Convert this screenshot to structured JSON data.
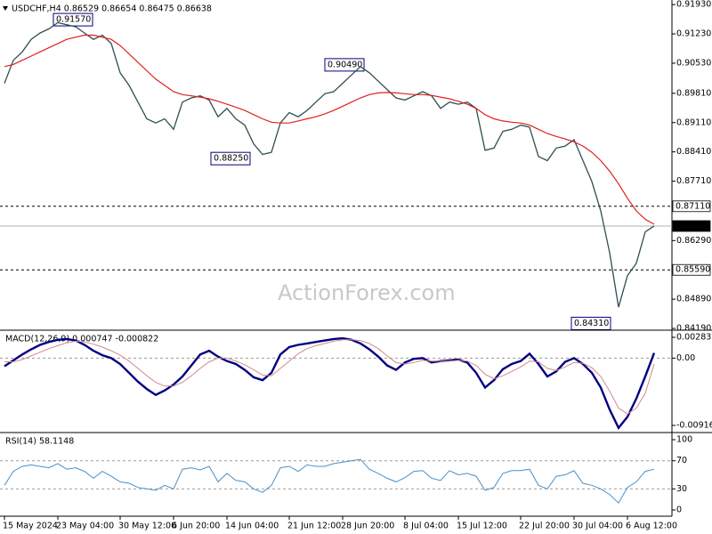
{
  "chart_data": [
    {
      "type": "line",
      "title": "USDCHF,H4 0.86529 0.86654 0.86475 0.86638",
      "watermark": "ActionForex.com",
      "categories": [
        "15 May 2024",
        null,
        null,
        null,
        null,
        null,
        "23 May 04:00",
        null,
        null,
        null,
        null,
        null,
        null,
        "30 May 12:00",
        null,
        null,
        null,
        null,
        null,
        "6 Jun 20:00",
        null,
        null,
        null,
        null,
        null,
        "14 Jun 04:00",
        null,
        null,
        null,
        null,
        null,
        null,
        "21 Jun 12:00",
        null,
        null,
        null,
        null,
        null,
        "28 Jun 20:00",
        null,
        null,
        null,
        null,
        null,
        null,
        "8 Jul 04:00",
        null,
        null,
        null,
        null,
        null,
        "15 Jul 12:00",
        null,
        null,
        null,
        null,
        null,
        null,
        "22 Jul 20:00",
        null,
        null,
        null,
        null,
        null,
        "30 Jul 04:00",
        null,
        null,
        null,
        null,
        null,
        "6 Aug 12:00",
        null,
        null,
        null
      ],
      "ylim": [
        0.8417,
        0.9204
      ],
      "yticks": [
        {
          "value": 0.9193,
          "label": "0.91930"
        },
        {
          "value": 0.9123,
          "label": "0.91230"
        },
        {
          "value": 0.9053,
          "label": "0.90530"
        },
        {
          "value": 0.8981,
          "label": "0.89810"
        },
        {
          "value": 0.8911,
          "label": "0.89110"
        },
        {
          "value": 0.8841,
          "label": "0.88410"
        },
        {
          "value": 0.8771,
          "label": "0.87710"
        },
        {
          "value": 0.8629,
          "label": "0.86290"
        },
        {
          "value": 0.8489,
          "label": "0.84890"
        },
        {
          "value": 0.8419,
          "label": "0.84190"
        }
      ],
      "series": [
        {
          "color": "#2f4f4f",
          "width": 1.3,
          "values": [
            0.9005,
            0.906,
            0.908,
            0.911,
            0.9125,
            0.9135,
            0.915,
            0.9145,
            0.914,
            0.9125,
            0.911,
            0.912,
            0.91,
            0.903,
            0.9,
            0.896,
            0.892,
            0.891,
            0.892,
            0.8895,
            0.896,
            0.897,
            0.8975,
            0.8965,
            0.8925,
            0.8945,
            0.892,
            0.8905,
            0.886,
            0.8835,
            0.884,
            0.891,
            0.8935,
            0.8925,
            0.894,
            0.896,
            0.898,
            0.8985,
            0.9005,
            0.9025,
            0.9045,
            0.903,
            0.901,
            0.899,
            0.897,
            0.8965,
            0.8975,
            0.8985,
            0.8975,
            0.8945,
            0.896,
            0.8955,
            0.896,
            0.8945,
            0.8845,
            0.885,
            0.889,
            0.8895,
            0.8905,
            0.89,
            0.883,
            0.882,
            0.885,
            0.8855,
            0.887,
            0.882,
            0.877,
            0.87,
            0.86,
            0.847,
            0.8545,
            0.8575,
            0.865,
            0.8664
          ]
        },
        {
          "color": "#e02020",
          "width": 1.2,
          "values": [
            0.9045,
            0.905,
            0.906,
            0.907,
            0.908,
            0.909,
            0.91,
            0.911,
            0.9115,
            0.912,
            0.912,
            0.9115,
            0.911,
            0.9095,
            0.9075,
            0.9055,
            0.9035,
            0.9015,
            0.9,
            0.8985,
            0.8978,
            0.8975,
            0.8972,
            0.8968,
            0.8962,
            0.8955,
            0.8948,
            0.894,
            0.893,
            0.892,
            0.8912,
            0.891,
            0.891,
            0.8915,
            0.892,
            0.8925,
            0.8932,
            0.894,
            0.895,
            0.896,
            0.897,
            0.8978,
            0.8982,
            0.8983,
            0.8982,
            0.898,
            0.8978,
            0.8978,
            0.8976,
            0.8972,
            0.8968,
            0.8962,
            0.8955,
            0.8945,
            0.893,
            0.892,
            0.8915,
            0.8912,
            0.891,
            0.8905,
            0.8895,
            0.8885,
            0.8878,
            0.8872,
            0.8865,
            0.8855,
            0.884,
            0.882,
            0.8795,
            0.8765,
            0.873,
            0.87,
            0.868,
            0.8668
          ]
        }
      ],
      "levels": [
        {
          "value": 0.8711,
          "label": "0.87110",
          "style": "dashed"
        },
        {
          "value": 0.86638,
          "label": "0.86638",
          "style": "current"
        },
        {
          "value": 0.8559,
          "label": "0.85590",
          "style": "dashed"
        }
      ],
      "annotations": [
        {
          "value": 0.9157,
          "label": "0.91570"
        },
        {
          "value": 0.9049,
          "label": "0.90490"
        },
        {
          "value": 0.8825,
          "label": "0.88250"
        },
        {
          "value": 0.8431,
          "label": "0.84310"
        }
      ]
    },
    {
      "type": "line",
      "title": "MACD(12,26,9) 0.000747 -0.000822",
      "ylim": [
        -0.010009,
        0.003683
      ],
      "yticks": [
        0.002835,
        {
          "value": 0,
          "label": "0.00"
        },
        -0.009161
      ],
      "levels": [
        0
      ],
      "series": [
        {
          "color": "#000080",
          "width": 2.4,
          "values": [
            -0.0011,
            -0.0003,
            0.0005,
            0.0012,
            0.0018,
            0.0022,
            0.0025,
            0.0026,
            0.0024,
            0.0018,
            0.001,
            0.0004,
            0.0,
            -0.0008,
            -0.002,
            -0.0032,
            -0.0042,
            -0.005,
            -0.0044,
            -0.0036,
            -0.0025,
            -0.001,
            0.0005,
            0.001,
            0.0002,
            -0.0004,
            -0.0008,
            -0.0016,
            -0.0026,
            -0.003,
            -0.002,
            0.0005,
            0.0015,
            0.0018,
            0.002,
            0.0022,
            0.0024,
            0.0026,
            0.0027,
            0.0025,
            0.002,
            0.0012,
            0.0002,
            -0.001,
            -0.0016,
            -0.0006,
            -0.0001,
            0.0,
            -0.0006,
            -0.0004,
            -0.0003,
            -0.0002,
            -0.0006,
            -0.002,
            -0.004,
            -0.003,
            -0.0015,
            -0.0008,
            -0.0004,
            0.0006,
            -0.0008,
            -0.0025,
            -0.0018,
            -0.0005,
            0.0,
            -0.0008,
            -0.002,
            -0.004,
            -0.007,
            -0.0095,
            -0.008,
            -0.0055,
            -0.0025,
            0.0007
          ]
        },
        {
          "color": "#d08a8a",
          "width": 1,
          "values": [
            -0.0005,
            -0.0005,
            -0.0002,
            0.0003,
            0.0008,
            0.0013,
            0.0017,
            0.0021,
            0.0023,
            0.0022,
            0.0019,
            0.0015,
            0.001,
            0.0004,
            -0.0004,
            -0.0014,
            -0.0024,
            -0.0033,
            -0.0038,
            -0.0038,
            -0.0033,
            -0.0024,
            -0.0014,
            -0.0005,
            0.0,
            0.0,
            -0.0004,
            -0.0009,
            -0.0016,
            -0.0023,
            -0.0024,
            -0.0014,
            -0.0004,
            0.0006,
            0.0013,
            0.0017,
            0.002,
            0.0023,
            0.0025,
            0.0025,
            0.0024,
            0.002,
            0.0013,
            0.0003,
            -0.0006,
            -0.0008,
            -0.0006,
            -0.0003,
            -0.0004,
            -0.0004,
            -0.0004,
            -0.0003,
            -0.0004,
            -0.001,
            -0.0022,
            -0.0028,
            -0.0024,
            -0.0018,
            -0.0012,
            -0.0004,
            -0.0005,
            -0.0014,
            -0.0017,
            -0.0012,
            -0.0006,
            -0.0007,
            -0.0013,
            -0.0025,
            -0.0045,
            -0.0068,
            -0.0076,
            -0.0068,
            -0.0048,
            -0.0008
          ]
        }
      ]
    },
    {
      "type": "line",
      "title": "RSI(14) 58.1148",
      "ylim": [
        -8.9,
        108.9
      ],
      "yticks": [
        100,
        70,
        30,
        0
      ],
      "levels": [
        70,
        30
      ],
      "series": [
        {
          "color": "#4a90c8",
          "width": 1,
          "values": [
            35,
            55,
            62,
            64,
            62,
            60,
            66,
            58,
            60,
            55,
            45,
            55,
            48,
            40,
            38,
            32,
            30,
            28,
            35,
            30,
            58,
            60,
            57,
            62,
            40,
            52,
            42,
            40,
            30,
            25,
            35,
            60,
            62,
            55,
            64,
            62,
            62,
            66,
            68,
            70,
            72,
            58,
            52,
            45,
            40,
            46,
            55,
            56,
            45,
            42,
            56,
            50,
            52,
            48,
            28,
            32,
            52,
            56,
            56,
            58,
            35,
            30,
            48,
            50,
            56,
            38,
            35,
            30,
            22,
            10,
            32,
            40,
            55,
            58
          ]
        }
      ]
    }
  ]
}
